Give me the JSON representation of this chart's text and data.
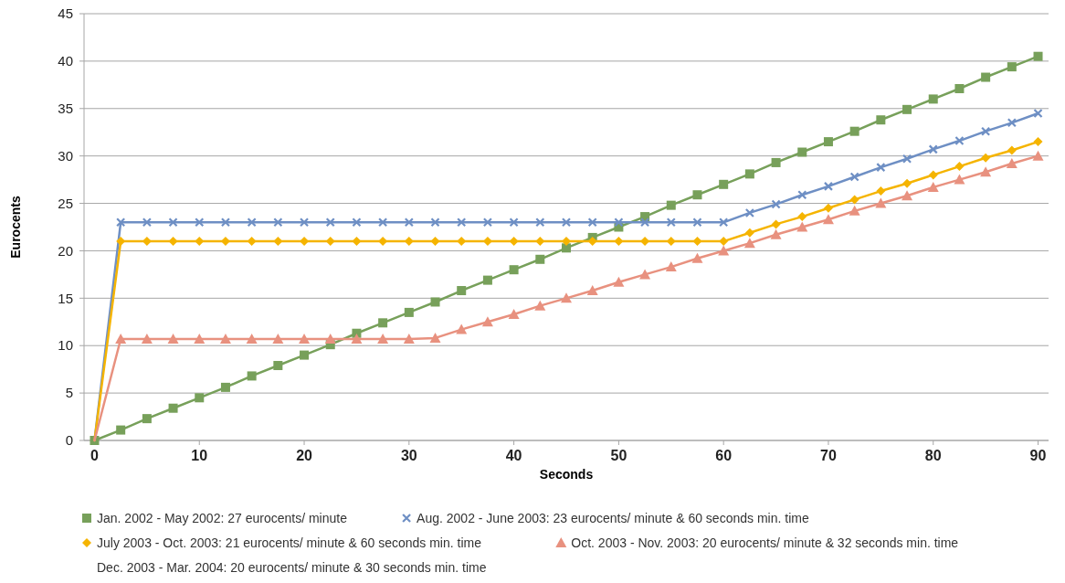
{
  "chart_data": {
    "type": "line",
    "xlabel": "Seconds",
    "ylabel": "Eurocents",
    "xlim": [
      -1,
      91
    ],
    "ylim": [
      0,
      45
    ],
    "xticks": [
      0,
      10,
      20,
      30,
      40,
      50,
      60,
      70,
      80,
      90
    ],
    "yticks": [
      0,
      5,
      10,
      15,
      20,
      25,
      30,
      35,
      40,
      45
    ],
    "grid": "y",
    "legend": "bottom",
    "x": [
      0,
      2.5,
      5,
      7.5,
      10,
      12.5,
      15,
      17.5,
      20,
      22.5,
      25,
      27.5,
      30,
      32.5,
      35,
      37.5,
      40,
      42.5,
      45,
      47.5,
      50,
      52.5,
      55,
      57.5,
      60,
      62.5,
      65,
      67.5,
      70,
      72.5,
      75,
      77.5,
      80,
      82.5,
      85,
      87.5,
      90
    ],
    "series": [
      {
        "name": "Jan. 2002 - May 2002: 27 eurocents/ minute",
        "color": "#77a05a",
        "marker": "square",
        "values": [
          0,
          1.1,
          2.3,
          3.4,
          4.5,
          5.6,
          6.8,
          7.9,
          9,
          10.1,
          11.3,
          12.4,
          13.5,
          14.6,
          15.8,
          16.9,
          18,
          19.1,
          20.3,
          21.4,
          22.5,
          23.6,
          24.8,
          25.9,
          27,
          28.1,
          29.3,
          30.4,
          31.5,
          32.6,
          33.8,
          34.9,
          36,
          37.1,
          38.3,
          39.4,
          40.5
        ]
      },
      {
        "name": "Aug. 2002 - June 2003: 23 eurocents/ minute & 60 seconds min. time",
        "color": "#6e8fc4",
        "marker": "cross",
        "values": [
          0,
          23,
          23,
          23,
          23,
          23,
          23,
          23,
          23,
          23,
          23,
          23,
          23,
          23,
          23,
          23,
          23,
          23,
          23,
          23,
          23,
          23,
          23,
          23,
          23,
          24,
          24.9,
          25.9,
          26.8,
          27.8,
          28.8,
          29.7,
          30.7,
          31.6,
          32.6,
          33.5,
          34.5
        ]
      },
      {
        "name": "July 2003 - Oct. 2003: 21 eurocents/ minute & 60 seconds min. time",
        "color": "#f5b400",
        "marker": "diamond",
        "values": [
          0,
          21,
          21,
          21,
          21,
          21,
          21,
          21,
          21,
          21,
          21,
          21,
          21,
          21,
          21,
          21,
          21,
          21,
          21,
          21,
          21,
          21,
          21,
          21,
          21,
          21.9,
          22.8,
          23.6,
          24.5,
          25.4,
          26.3,
          27.1,
          28,
          28.9,
          29.8,
          30.6,
          31.5
        ]
      },
      {
        "name": "Oct. 2003 - Nov. 2003: 20 eurocents/ minute & 32 seconds min. time",
        "color": "#e8917f",
        "marker": "triangle",
        "values": [
          0,
          10.7,
          10.7,
          10.7,
          10.7,
          10.7,
          10.7,
          10.7,
          10.7,
          10.7,
          10.7,
          10.7,
          10.7,
          10.8,
          11.7,
          12.5,
          13.3,
          14.2,
          15,
          15.8,
          16.7,
          17.5,
          18.3,
          19.2,
          20,
          20.8,
          21.7,
          22.5,
          23.3,
          24.2,
          25,
          25.8,
          26.7,
          27.5,
          28.3,
          29.2,
          30
        ]
      }
    ],
    "annotations": [
      "Dec. 2003 - Mar. 2004: 20 eurocents/ minute & 30 seconds min. time"
    ]
  }
}
